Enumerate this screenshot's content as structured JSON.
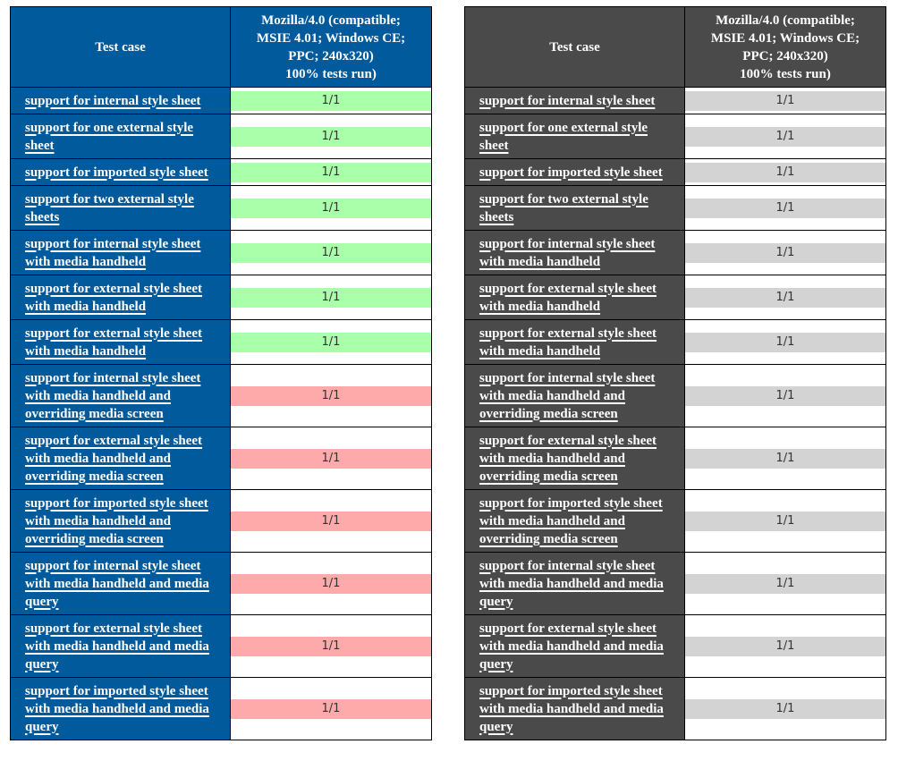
{
  "colors": {
    "blue_header": "#005a9c",
    "gray_header": "#4a4a4a",
    "pass": "#aaffaa",
    "fail": "#ffaaaa",
    "neutral": "#d3d3d3"
  },
  "header": {
    "test_case_label": "Test case",
    "agent_lines": [
      "Mozilla/4.0 (compatible;",
      "MSIE 4.01; Windows CE;",
      "PPC; 240x320)",
      "100% tests run)"
    ]
  },
  "rows": [
    {
      "lines": [
        "support for internal style sheet"
      ],
      "result": "1/1",
      "status": "pass"
    },
    {
      "lines": [
        "support for one external style",
        "sheet"
      ],
      "result": "1/1",
      "status": "pass"
    },
    {
      "lines": [
        "support for imported style sheet"
      ],
      "result": "1/1",
      "status": "pass"
    },
    {
      "lines": [
        "support for two external style",
        "sheets"
      ],
      "result": "1/1",
      "status": "pass"
    },
    {
      "lines": [
        "support for internal style sheet",
        "with media handheld"
      ],
      "result": "1/1",
      "status": "pass"
    },
    {
      "lines": [
        "support for external style sheet",
        "with media handheld"
      ],
      "result": "1/1",
      "status": "pass"
    },
    {
      "lines": [
        "support for external style sheet",
        "with media handheld"
      ],
      "result": "1/1",
      "status": "pass"
    },
    {
      "lines": [
        "support for internal style sheet",
        "with media handheld and",
        "overriding media screen"
      ],
      "result": "1/1",
      "status": "fail"
    },
    {
      "lines": [
        "support for external style sheet",
        "with media handheld and",
        "overriding media screen"
      ],
      "result": "1/1",
      "status": "fail"
    },
    {
      "lines": [
        "support for imported style sheet",
        "with media handheld and",
        "overriding media screen"
      ],
      "result": "1/1",
      "status": "fail"
    },
    {
      "lines": [
        "support for internal style sheet",
        "with media handheld and media",
        "query"
      ],
      "result": "1/1",
      "status": "fail"
    },
    {
      "lines": [
        "support for external style sheet",
        "with media handheld and media",
        "query"
      ],
      "result": "1/1",
      "status": "fail"
    },
    {
      "lines": [
        "support for imported style sheet",
        "with media handheld and media",
        "query"
      ],
      "result": "1/1",
      "status": "fail"
    }
  ]
}
